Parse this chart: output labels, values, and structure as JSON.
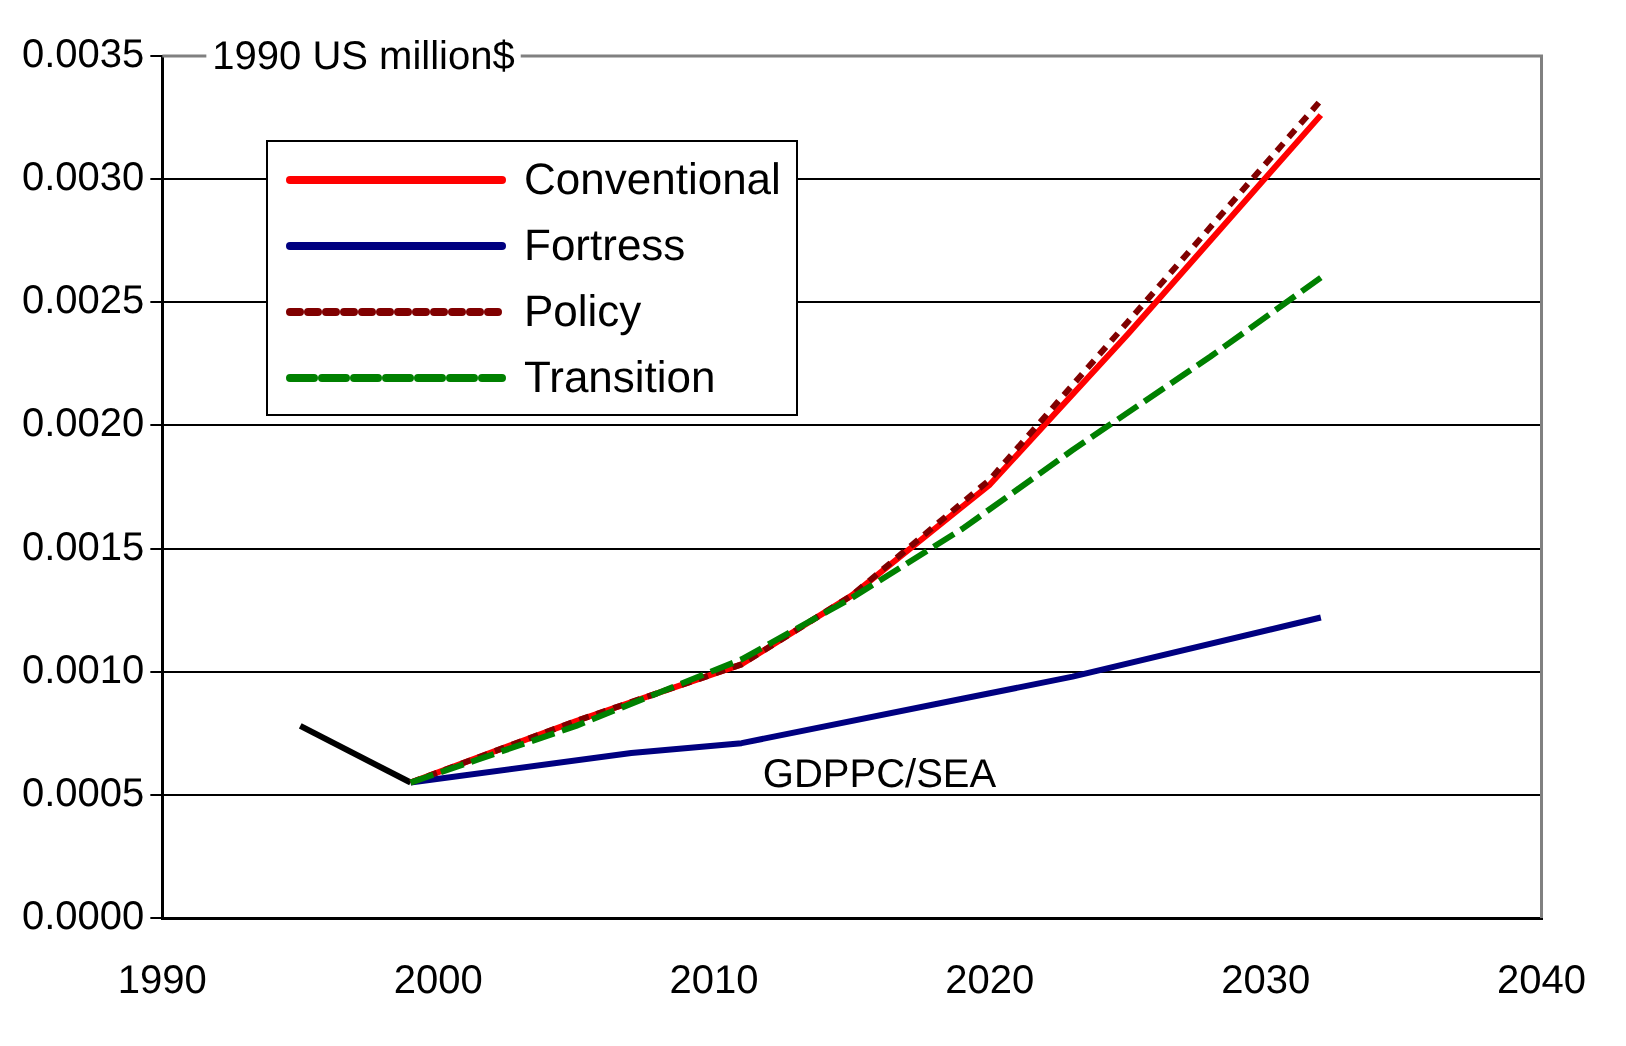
{
  "chart_data": {
    "type": "line",
    "ylabel": "1990 US million$",
    "annotations": [
      "GDPPC/SEA"
    ],
    "xlim": [
      1990,
      2040
    ],
    "xticks": [
      1990,
      2000,
      2010,
      2020,
      2030,
      2040
    ],
    "ylim": [
      0,
      0.0035
    ],
    "yticks": [
      {
        "value": 0,
        "label": "0.0000"
      },
      {
        "value": 0.0005,
        "label": "0.0005"
      },
      {
        "value": 0.001,
        "label": "0.0010"
      },
      {
        "value": 0.0015,
        "label": "0.0015"
      },
      {
        "value": 0.002,
        "label": "0.0020"
      },
      {
        "value": 0.0025,
        "label": "0.0025"
      },
      {
        "value": 0.003,
        "label": "0.0030"
      },
      {
        "value": 0.0035,
        "label": "0.0035"
      }
    ],
    "grid": "y",
    "legend": "top left",
    "marker": "none",
    "series": [
      {
        "color": "#000000",
        "line_style": "solid",
        "x": [
          1995,
          1999
        ],
        "values": [
          0.00078,
          0.00055
        ]
      },
      {
        "name": "Conventional",
        "color": "#ff0000",
        "line_style": "solid",
        "x": [
          1999,
          2005,
          2011,
          2015,
          2020,
          2025,
          2032
        ],
        "values": [
          0.00055,
          0.0008,
          0.00103,
          0.00131,
          0.00176,
          0.00237,
          0.00326
        ]
      },
      {
        "name": "Fortress",
        "color": "#000080",
        "line_style": "solid",
        "x": [
          1999,
          2007,
          2011,
          2019,
          2023,
          2032
        ],
        "values": [
          0.00055,
          0.00067,
          0.00071,
          0.00089,
          0.00098,
          0.00122
        ]
      },
      {
        "name": "Policy",
        "color": "#800000",
        "line_style": "dotted",
        "x": [
          1999,
          2005,
          2011,
          2015,
          2020,
          2025,
          2032
        ],
        "values": [
          0.00055,
          0.0008,
          0.00103,
          0.00131,
          0.00178,
          0.00242,
          0.00332
        ]
      },
      {
        "name": "Transition",
        "color": "#008000",
        "line_style": "dashed",
        "x": [
          1999,
          2005,
          2011,
          2015,
          2019,
          2023,
          2028,
          2032
        ],
        "values": [
          0.00055,
          0.00078,
          0.00105,
          0.0013,
          0.00158,
          0.0019,
          0.00228,
          0.0026
        ]
      }
    ]
  }
}
